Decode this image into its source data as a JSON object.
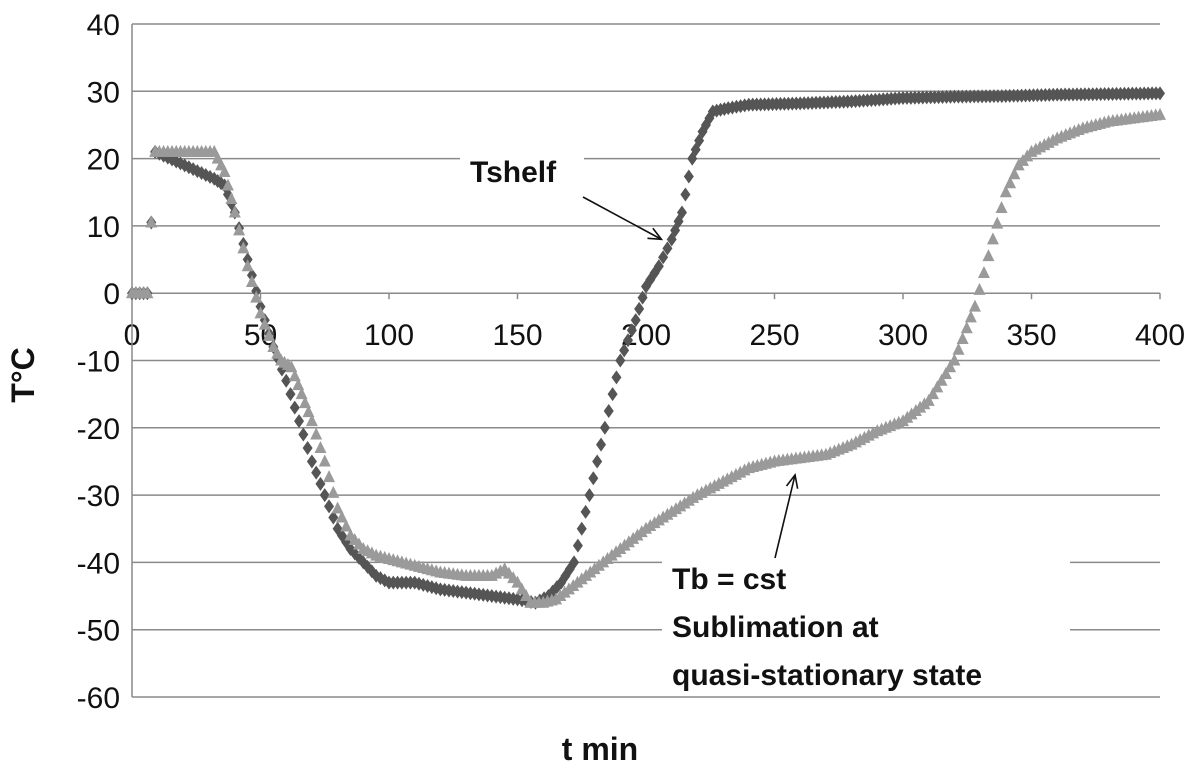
{
  "chart_data": {
    "type": "scatter",
    "xlabel": "t min",
    "ylabel": "T°C",
    "xlim": [
      0,
      400
    ],
    "ylim": [
      -60,
      40
    ],
    "x_ticks": [
      0,
      50,
      100,
      150,
      200,
      250,
      300,
      350,
      400
    ],
    "y_ticks": [
      40,
      30,
      20,
      10,
      0,
      -10,
      -20,
      -30,
      -40,
      -50,
      -60
    ],
    "grid": "horizontal",
    "legend": "none",
    "series": [
      {
        "name": "",
        "marker": "diamond",
        "color": "#555555",
        "points": [
          [
            0,
            0
          ],
          [
            3,
            0
          ],
          [
            6,
            0
          ],
          [
            9,
            21
          ],
          [
            32,
            17
          ],
          [
            36,
            16
          ],
          [
            40,
            12
          ],
          [
            45,
            5
          ],
          [
            50,
            -2
          ],
          [
            55,
            -8
          ],
          [
            60,
            -13
          ],
          [
            65,
            -19
          ],
          [
            70,
            -25
          ],
          [
            75,
            -30
          ],
          [
            80,
            -35
          ],
          [
            85,
            -38
          ],
          [
            90,
            -40
          ],
          [
            95,
            -42
          ],
          [
            100,
            -43
          ],
          [
            110,
            -43
          ],
          [
            120,
            -44
          ],
          [
            130,
            -44.5
          ],
          [
            140,
            -45
          ],
          [
            150,
            -45.5
          ],
          [
            157,
            -46
          ],
          [
            162,
            -45
          ],
          [
            167,
            -43
          ],
          [
            172,
            -40
          ],
          [
            178,
            -30
          ],
          [
            184,
            -20
          ],
          [
            190,
            -10
          ],
          [
            196,
            -4
          ],
          [
            200,
            1
          ],
          [
            205,
            4
          ],
          [
            210,
            8
          ],
          [
            214,
            12
          ],
          [
            218,
            20
          ],
          [
            222,
            24
          ],
          [
            226,
            27
          ],
          [
            232,
            27.5
          ],
          [
            240,
            28
          ],
          [
            260,
            28.2
          ],
          [
            280,
            28.5
          ],
          [
            300,
            29
          ],
          [
            320,
            29.2
          ],
          [
            340,
            29.3
          ],
          [
            360,
            29.5
          ],
          [
            380,
            29.6
          ],
          [
            400,
            29.7
          ]
        ]
      },
      {
        "name": "",
        "marker": "triangle",
        "color": "#9a9a9a",
        "points": [
          [
            0,
            0
          ],
          [
            3,
            0
          ],
          [
            6,
            0
          ],
          [
            9,
            21
          ],
          [
            32,
            21
          ],
          [
            36,
            18
          ],
          [
            40,
            12
          ],
          [
            45,
            4
          ],
          [
            50,
            -3
          ],
          [
            55,
            -8
          ],
          [
            58,
            -10
          ],
          [
            62,
            -11
          ],
          [
            66,
            -15
          ],
          [
            70,
            -19
          ],
          [
            75,
            -25
          ],
          [
            80,
            -32
          ],
          [
            85,
            -36
          ],
          [
            90,
            -38
          ],
          [
            95,
            -39
          ],
          [
            100,
            -39.5
          ],
          [
            110,
            -40.5
          ],
          [
            120,
            -41.5
          ],
          [
            130,
            -42
          ],
          [
            140,
            -42
          ],
          [
            145,
            -41
          ],
          [
            150,
            -43
          ],
          [
            155,
            -46
          ],
          [
            160,
            -46
          ],
          [
            165,
            -45.5
          ],
          [
            170,
            -44
          ],
          [
            180,
            -41
          ],
          [
            190,
            -38
          ],
          [
            200,
            -35
          ],
          [
            210,
            -32.5
          ],
          [
            220,
            -30
          ],
          [
            230,
            -28
          ],
          [
            240,
            -26
          ],
          [
            250,
            -25
          ],
          [
            260,
            -24.5
          ],
          [
            270,
            -24
          ],
          [
            280,
            -22.5
          ],
          [
            290,
            -20.5
          ],
          [
            300,
            -19
          ],
          [
            310,
            -16
          ],
          [
            320,
            -10
          ],
          [
            328,
            -2
          ],
          [
            335,
            8
          ],
          [
            340,
            15
          ],
          [
            345,
            19
          ],
          [
            350,
            21
          ],
          [
            360,
            23
          ],
          [
            370,
            24.5
          ],
          [
            380,
            25.5
          ],
          [
            390,
            26
          ],
          [
            400,
            26.5
          ]
        ]
      }
    ],
    "annotations": [
      {
        "lines": [
          "Tshelf"
        ],
        "target": [
          206,
          8
        ]
      },
      {
        "lines": [
          "Tb = cst",
          "Sublimation at",
          "quasi-stationary state"
        ],
        "target": [
          258,
          -27
        ]
      }
    ]
  }
}
